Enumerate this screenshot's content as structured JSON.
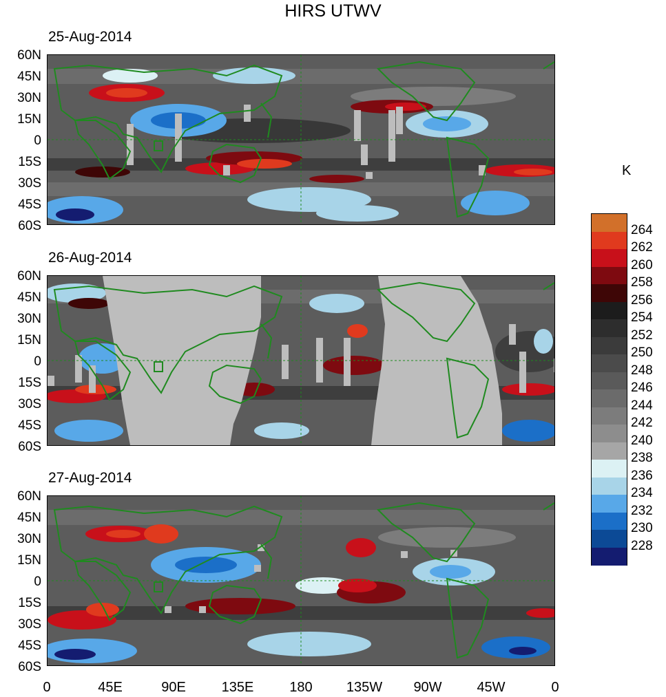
{
  "title": "HIRS UTWV",
  "panels": [
    {
      "date": "25-Aug-2014"
    },
    {
      "date": "26-Aug-2014"
    },
    {
      "date": "27-Aug-2014"
    }
  ],
  "lat_labels": [
    "60N",
    "45N",
    "30N",
    "15N",
    "0",
    "15S",
    "30S",
    "45S",
    "60S"
  ],
  "lon_labels": [
    "0",
    "45E",
    "90E",
    "135E",
    "180",
    "135W",
    "90W",
    "45W",
    "0"
  ],
  "colorbar": {
    "unit": "K",
    "levels": [
      "264",
      "262",
      "260",
      "258",
      "256",
      "254",
      "252",
      "250",
      "248",
      "246",
      "244",
      "242",
      "240",
      "238",
      "236",
      "234",
      "232",
      "230",
      "228"
    ],
    "colors": [
      "#d2702a",
      "#e03a1e",
      "#c8101a",
      "#7e0a10",
      "#3e0606",
      "#1c1c1c",
      "#2d2d2d",
      "#3b3b3b",
      "#4b4b4b",
      "#5a5a5a",
      "#6b6b6b",
      "#7c7c7c",
      "#8d8d8d",
      "#a6a6a6",
      "#dcf1f4",
      "#a8d4e8",
      "#58a8e8",
      "#1b6fc8",
      "#0c4a96",
      "#141c70"
    ]
  }
}
